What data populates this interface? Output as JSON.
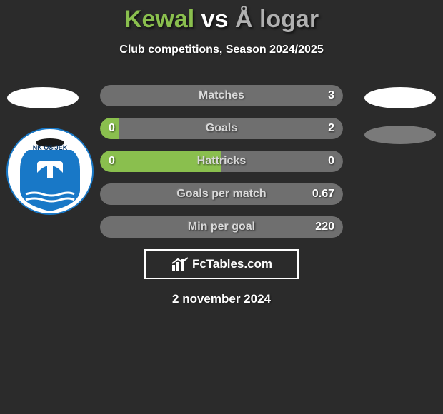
{
  "background_color": "#2b2b2b",
  "title": {
    "player1": {
      "text": "Kewal",
      "color": "#8abf4e"
    },
    "vs": {
      "text": "vs",
      "color": "#ffffff"
    },
    "player2": {
      "text": "Å logar",
      "color": "#b0b0b0"
    }
  },
  "subtitle": "Club competitions, Season 2024/2025",
  "palette": {
    "p1": "#8abf4e",
    "p2": "#6f6f6f",
    "label": "#d9d9d9",
    "value": "#ffffff"
  },
  "bars": [
    {
      "label": "Matches",
      "v1": "",
      "v2": "3",
      "leftPct": 0,
      "rightPct": 100
    },
    {
      "label": "Goals",
      "v1": "0",
      "v2": "2",
      "leftPct": 8,
      "rightPct": 92
    },
    {
      "label": "Hattricks",
      "v1": "0",
      "v2": "0",
      "leftPct": 50,
      "rightPct": 50
    },
    {
      "label": "Goals per match",
      "v1": "",
      "v2": "0.67",
      "leftPct": 0,
      "rightPct": 100
    },
    {
      "label": "Min per goal",
      "v1": "",
      "v2": "220",
      "leftPct": 0,
      "rightPct": 100
    }
  ],
  "brand": {
    "icon": "chart-icon",
    "text": "FcTables.com"
  },
  "date": "2 november 2024",
  "club_logo": {
    "name": "NK OSIJEK",
    "shield_bg": "#ffffff",
    "shield_blue": "#1878c7",
    "text_color": "#0d3a6b"
  }
}
